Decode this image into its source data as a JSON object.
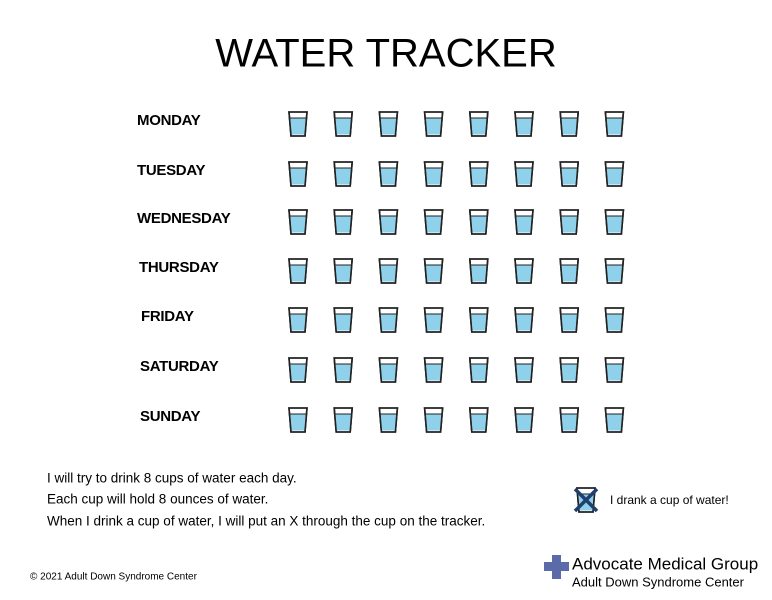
{
  "header": {
    "title": "WATER TRACKER"
  },
  "days": [
    "MONDAY",
    "TUESDAY",
    "WEDNESDAY",
    "THURSDAY",
    "FRIDAY",
    "SATURDAY",
    "SUNDAY"
  ],
  "instructions": [
    "I will try to drink 8 cups of water each day.",
    "Each cup will hold 8 ounces of water.",
    "When I drink a cup of water, I will put an X through the cup on the tracker."
  ],
  "legend": {
    "label": "I drank a cup of water!"
  },
  "footer": {
    "copyright": "© 2021 Adult Down Syndrome Center",
    "org": "Advocate Medical Group",
    "center": "Adult Down Syndrome Center"
  }
}
